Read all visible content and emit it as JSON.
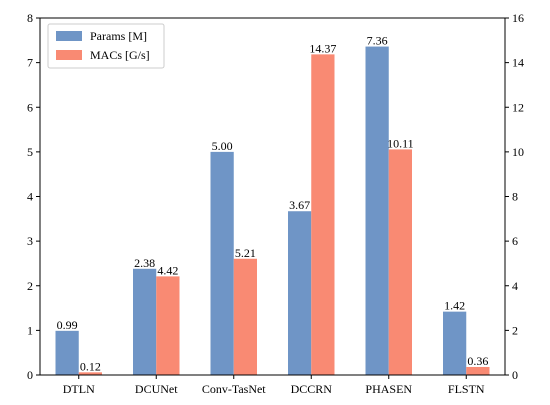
{
  "chart_data": {
    "type": "bar",
    "categories": [
      "DTLN",
      "DCUNet",
      "Conv-TasNet",
      "DCCRN",
      "PHASEN",
      "FLSTN"
    ],
    "series": [
      {
        "name": "Params [M]",
        "axis": "left",
        "values": [
          0.99,
          2.38,
          5.0,
          3.67,
          7.36,
          1.42
        ],
        "labels": [
          "0.99",
          "2.38",
          "5.00",
          "3.67",
          "7.36",
          "1.42"
        ]
      },
      {
        "name": "MACs [G/s]",
        "axis": "right",
        "values": [
          0.12,
          4.42,
          5.21,
          14.37,
          10.11,
          0.36
        ],
        "labels": [
          "0.12",
          "4.42",
          "5.21",
          "14.37",
          "10.11",
          "0.36"
        ]
      }
    ],
    "ylim_left": [
      0,
      8
    ],
    "yticks_left": [
      0,
      1,
      2,
      3,
      4,
      5,
      6,
      7,
      8
    ],
    "ylim_right": [
      0,
      16
    ],
    "yticks_right": [
      0,
      2,
      4,
      6,
      8,
      10,
      12,
      14,
      16
    ],
    "legend_position": "top-left",
    "grid": false,
    "colors": {
      "params": "#6f95c6",
      "macs": "#f98a73"
    },
    "title": "",
    "xlabel": "",
    "ylabel": ""
  }
}
